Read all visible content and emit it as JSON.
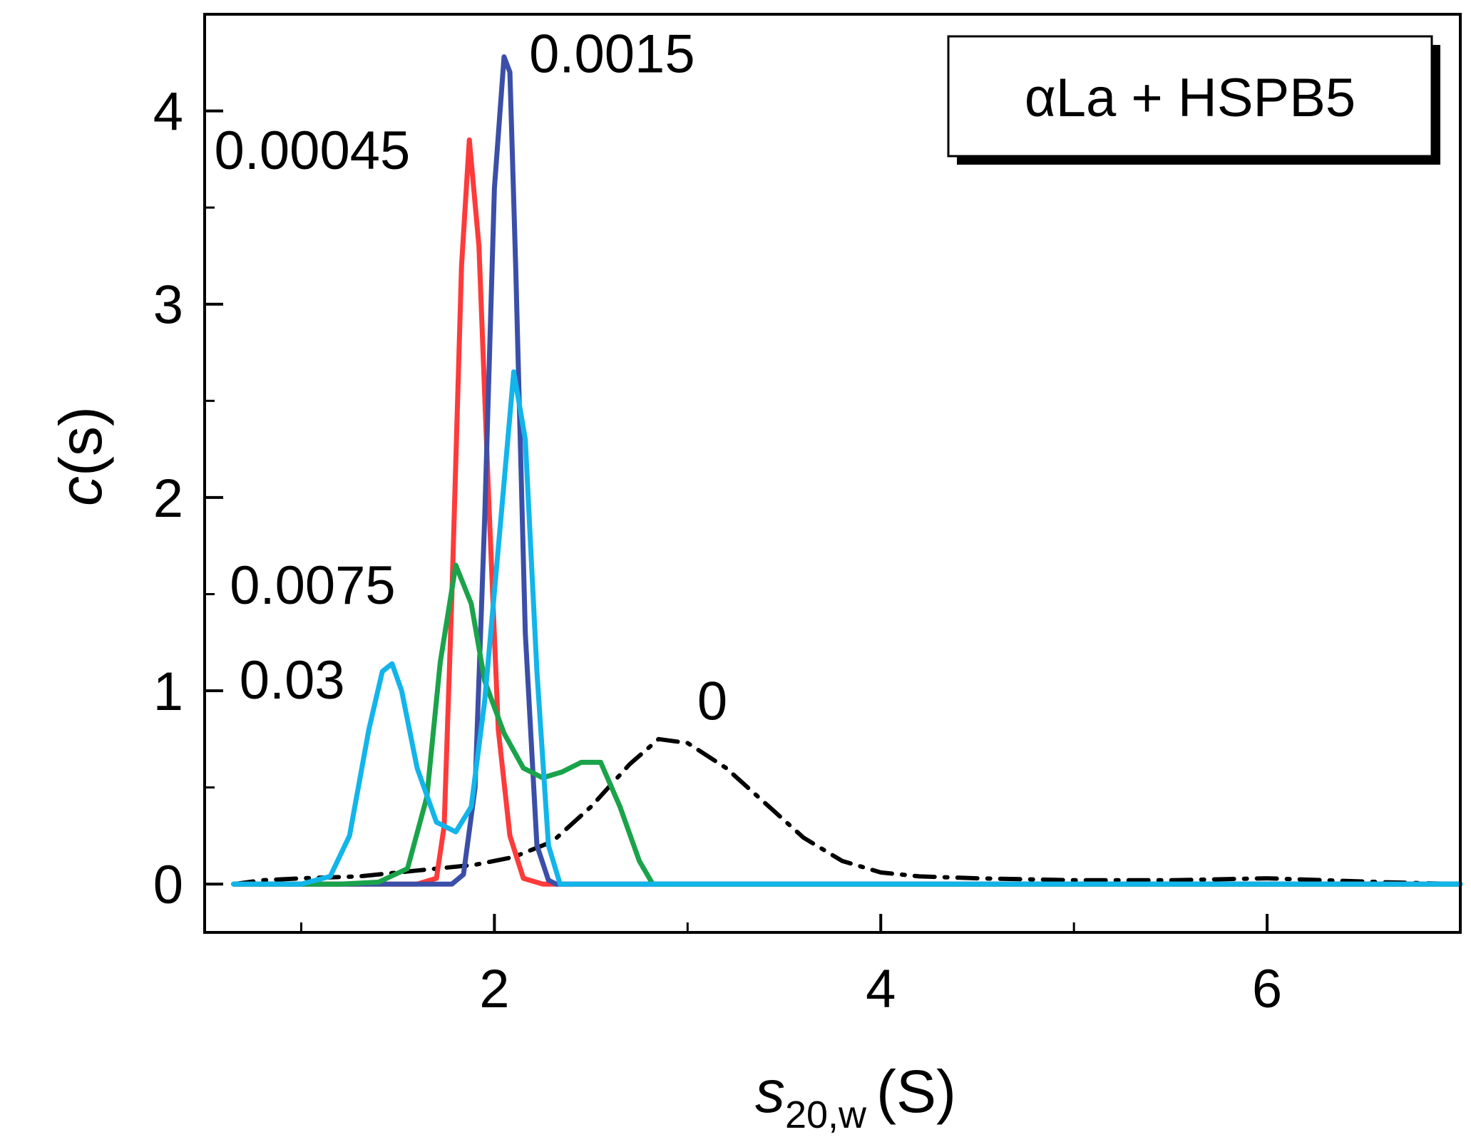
{
  "chart_data": {
    "type": "line",
    "title": "",
    "legend_box_text": "αLa + HSPB5",
    "xlabel": {
      "main": "s",
      "subscript": "20,w",
      "unit": "(S)"
    },
    "ylabel": {
      "main": "c",
      "rest": "(s)"
    },
    "xlim": [
      0.5,
      7.0
    ],
    "ylim": [
      -0.25,
      4.5
    ],
    "xticks": [
      2,
      4,
      6
    ],
    "xtick_labels": [
      "2",
      "4",
      "6"
    ],
    "xminor": [
      1,
      3,
      5
    ],
    "yticks": [
      0,
      1,
      2,
      3,
      4
    ],
    "ytick_labels": [
      "0",
      "1",
      "2",
      "3",
      "4"
    ],
    "yminor": [
      0.5,
      1.5,
      2.5,
      3.5
    ],
    "series": [
      {
        "name": "0",
        "color": "#000000",
        "dash": "dashdot",
        "label_at": [
          3.05,
          0.85
        ],
        "x": [
          0.65,
          0.8,
          1.0,
          1.3,
          1.6,
          1.9,
          2.1,
          2.3,
          2.5,
          2.7,
          2.85,
          3.0,
          3.2,
          3.4,
          3.6,
          3.8,
          4.0,
          4.2,
          4.5,
          5.0,
          5.5,
          6.0,
          6.3,
          6.6,
          7.0
        ],
        "y": [
          0.0,
          0.02,
          0.03,
          0.04,
          0.07,
          0.1,
          0.14,
          0.22,
          0.4,
          0.62,
          0.75,
          0.73,
          0.6,
          0.42,
          0.24,
          0.12,
          0.06,
          0.04,
          0.03,
          0.02,
          0.02,
          0.03,
          0.02,
          0.01,
          0.0
        ]
      },
      {
        "name": "0.00045",
        "color": "#ff3a3a",
        "dash": "solid",
        "label_at": [
          0.55,
          3.7
        ],
        "x": [
          0.65,
          1.6,
          1.7,
          1.74,
          1.78,
          1.83,
          1.87,
          1.92,
          1.97,
          2.02,
          2.08,
          2.15,
          2.25,
          7.0
        ],
        "y": [
          0.0,
          0.0,
          0.03,
          0.3,
          1.5,
          3.2,
          3.85,
          3.3,
          2.0,
          0.8,
          0.25,
          0.03,
          0.0,
          0.0
        ]
      },
      {
        "name": "0.0015",
        "color": "#3b4fa8",
        "dash": "solid",
        "label_at": [
          2.18,
          4.2
        ],
        "x": [
          0.65,
          1.78,
          1.84,
          1.9,
          1.95,
          2.0,
          2.05,
          2.08,
          2.11,
          2.16,
          2.22,
          2.28,
          2.32,
          7.0
        ],
        "y": [
          0.0,
          0.0,
          0.05,
          0.5,
          1.9,
          3.6,
          4.28,
          4.2,
          3.2,
          1.3,
          0.2,
          0.02,
          0.0,
          0.0
        ]
      },
      {
        "name": "0.0075",
        "color": "#1aa34a",
        "dash": "solid",
        "label_at": [
          0.63,
          1.45
        ],
        "x": [
          0.65,
          1.2,
          1.4,
          1.55,
          1.65,
          1.72,
          1.8,
          1.88,
          1.95,
          2.05,
          2.15,
          2.25,
          2.35,
          2.45,
          2.55,
          2.65,
          2.75,
          2.82,
          7.0
        ],
        "y": [
          0.0,
          0.0,
          0.01,
          0.08,
          0.45,
          1.15,
          1.65,
          1.45,
          1.05,
          0.78,
          0.6,
          0.55,
          0.58,
          0.63,
          0.63,
          0.4,
          0.12,
          0.0,
          0.0
        ]
      },
      {
        "name": "0.03",
        "color": "#12b5ea",
        "dash": "solid",
        "label_at": [
          0.68,
          0.96
        ],
        "x": [
          0.65,
          1.0,
          1.15,
          1.25,
          1.35,
          1.42,
          1.47,
          1.52,
          1.6,
          1.7,
          1.8,
          1.88,
          1.95,
          2.03,
          2.1,
          2.16,
          2.22,
          2.28,
          2.34,
          7.0
        ],
        "y": [
          0.0,
          0.0,
          0.04,
          0.25,
          0.8,
          1.1,
          1.14,
          1.0,
          0.6,
          0.32,
          0.27,
          0.4,
          0.95,
          1.85,
          2.65,
          2.3,
          1.1,
          0.2,
          0.0,
          0.0
        ]
      }
    ]
  }
}
